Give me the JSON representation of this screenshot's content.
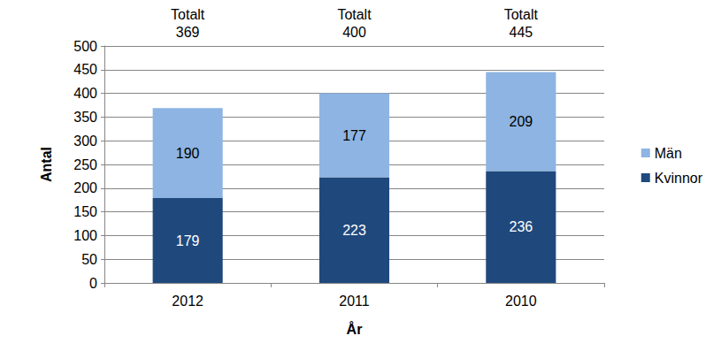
{
  "chart_data": {
    "type": "bar",
    "stacked": true,
    "data_labels": true,
    "grid": true,
    "legend": "right",
    "categories": [
      "2012",
      "2011",
      "2010"
    ],
    "xlabel": "År",
    "ylabel": "Antal",
    "ylim": [
      0,
      500
    ],
    "yticks": [
      0,
      50,
      100,
      150,
      200,
      250,
      300,
      350,
      400,
      450,
      500
    ],
    "series": [
      {
        "name": "Kvinnor",
        "color": "#1f497d",
        "values": [
          179,
          223,
          236
        ]
      },
      {
        "name": "Män",
        "color": "#8db4e2",
        "values": [
          190,
          177,
          209
        ]
      }
    ],
    "total_label": "Totalt",
    "totals": [
      369,
      400,
      445
    ]
  }
}
